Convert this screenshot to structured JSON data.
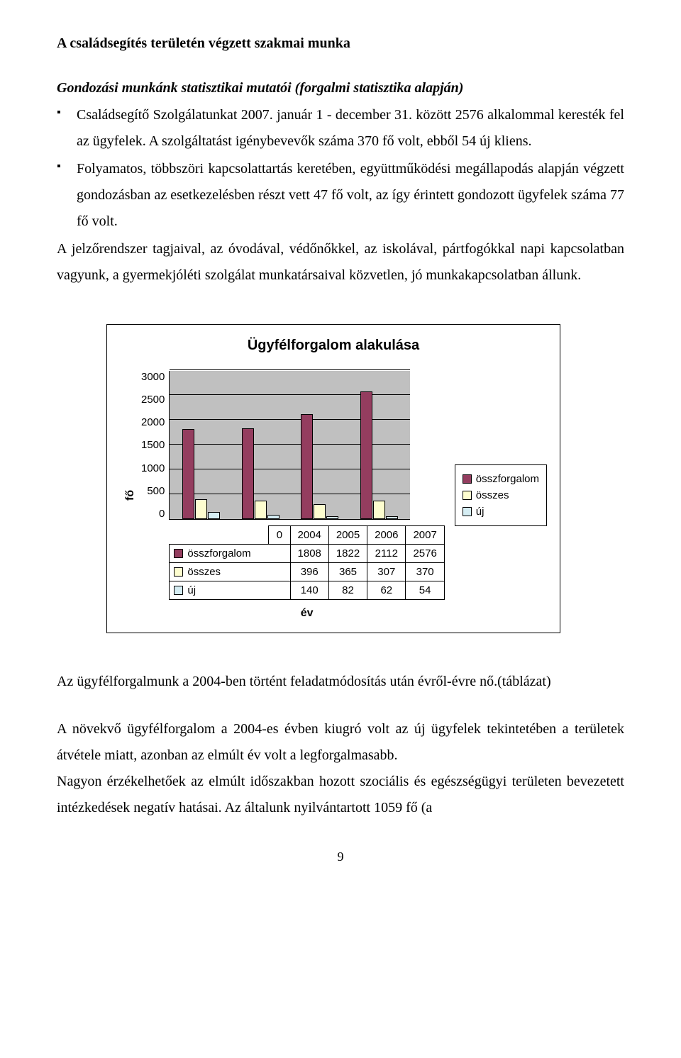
{
  "text": {
    "heading": "A családsegítés területén végzett szakmai munka",
    "subheading": "Gondozási munkánk statisztikai mutatói (forgalmi statisztika alapján)",
    "bullet1": "Családsegítő Szolgálatunkat 2007. január 1 - december 31. között 2576 alkalommal keresték fel az ügyfelek. A szolgáltatást igénybevevők száma 370 fő volt, ebből 54 új kliens.",
    "bullet2": "Folyamatos, többszöri kapcsolattartás keretében, együttműködési megállapodás alapján végzett gondozásban az esetkezelésben részt vett 47 fő volt, az így érintett gondozott ügyfelek száma 77 fő volt.",
    "para1": "A jelzőrendszer tagjaival, az óvodával, védőnőkkel, az iskolával, pártfogókkal napi kapcsolatban vagyunk, a gyermekjóléti szolgálat munkatársaival közvetlen, jó munkakapcsolatban állunk.",
    "after_chart1": "Az ügyfélforgalmunk a 2004-ben történt feladatmódosítás után évről-évre nő.(táblázat)",
    "after_chart2": "A növekvő ügyfélforgalom a 2004-es évben kiugró volt az új ügyfelek tekintetében a területek átvétele miatt, azonban az elmúlt év volt a legforgalmasabb.",
    "after_chart3": "Nagyon érzékelhetőek az elmúlt időszakban hozott szociális és egészségügyi területen bevezetett intézkedések negatív hatásai. Az általunk nyilvántartott 1059 fő (a",
    "page_number": "9"
  },
  "chart": {
    "title": "Ügyfélforgalom alakulása",
    "type": "bar",
    "y_label": "fő",
    "x_label": "év",
    "y_max": 3000,
    "y_ticks": [
      "3000",
      "2500",
      "2000",
      "1500",
      "1000",
      "500",
      "0"
    ],
    "years": [
      "2004",
      "2005",
      "2006",
      "2007"
    ],
    "series": [
      {
        "name": "összforgalom",
        "color": "#943d5f",
        "values": [
          1808,
          1822,
          2112,
          2576
        ]
      },
      {
        "name": "összes",
        "color": "#fdfdcf",
        "values": [
          396,
          365,
          307,
          370
        ]
      },
      {
        "name": "új",
        "color": "#d5edf3",
        "values": [
          140,
          82,
          62,
          54
        ]
      }
    ],
    "background_color": "#ffffff",
    "plot_background": "#c0c0c0",
    "grid_color": "#000000",
    "zero_label": "0"
  }
}
